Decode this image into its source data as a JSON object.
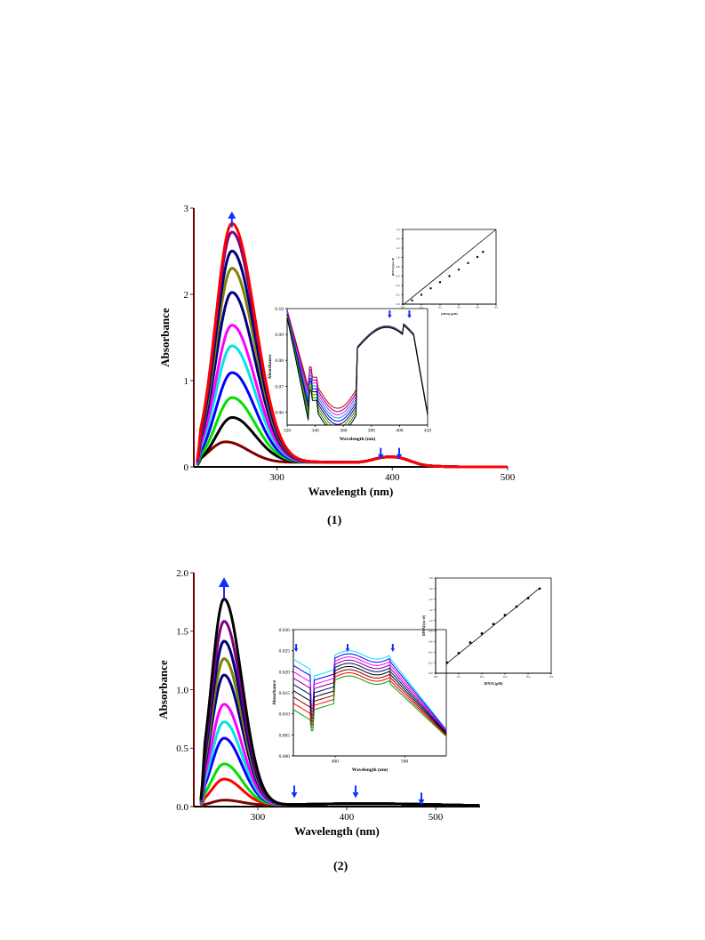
{
  "figures": [
    {
      "label": "(1)",
      "chart_data": {
        "type": "line",
        "xlabel": "Wavelength (nm)",
        "ylabel": "Absorbance",
        "xlim": [
          228,
          500
        ],
        "ylim": [
          0,
          3
        ],
        "xticks": [
          "300",
          "400",
          "500"
        ],
        "yticks": [
          "0",
          "1",
          "2",
          "3"
        ],
        "arrows": [
          {
            "x": 261,
            "y": 2.9,
            "direction": "up"
          },
          {
            "x": 390,
            "y": 0.22,
            "direction": "down"
          },
          {
            "x": 406,
            "y": 0.22,
            "direction": "down"
          }
        ],
        "series": [
          {
            "color": "#800000",
            "peak": 0.27,
            "peak_x": 255
          },
          {
            "color": "#000000",
            "peak": 0.55,
            "peak_x": 261
          },
          {
            "color": "#00e000",
            "peak": 0.78,
            "peak_x": 261
          },
          {
            "color": "#0000ff",
            "peak": 1.07,
            "peak_x": 261
          },
          {
            "color": "#00e5e5",
            "peak": 1.38,
            "peak_x": 261
          },
          {
            "color": "#ff00ff",
            "peak": 1.62,
            "peak_x": 261
          },
          {
            "color": "#000080",
            "peak": 2.0,
            "peak_x": 261
          },
          {
            "color": "#808000",
            "peak": 2.28,
            "peak_x": 261
          },
          {
            "color": "#000080",
            "peak": 2.48,
            "peak_x": 261
          },
          {
            "color": "#800080",
            "peak": 2.7,
            "peak_x": 261
          },
          {
            "color": "#ff0000",
            "peak": 2.8,
            "peak_x": 261
          }
        ],
        "tail_shoulders": [
          {
            "x": 391,
            "y": 0.09
          },
          {
            "x": 407,
            "y": 0.1
          }
        ]
      },
      "inset_spectra": {
        "type": "line",
        "xlabel": "Wavelength (nm)",
        "ylabel": "Absorbance",
        "xlim": [
          320,
          420
        ],
        "ylim": [
          0.055,
          0.1
        ],
        "xticks": [
          "320",
          "340",
          "360",
          "380",
          "400",
          "420"
        ],
        "yticks": [
          "0.06",
          "0.07",
          "0.08",
          "0.09",
          "0.10"
        ],
        "arrows": [
          {
            "x": 393,
            "direction": "down"
          },
          {
            "x": 407,
            "direction": "down"
          }
        ],
        "colors": [
          "#c00000",
          "#800080",
          "#ff00ff",
          "#00aaaa",
          "#0000ff",
          "#000080",
          "#808000",
          "#00a000",
          "#000000"
        ]
      },
      "inset_linear": {
        "type": "scatter",
        "xlabel": "[DNA] (μM)",
        "ylabel": "[DNA]/(εa-εf)",
        "xlim": [
          0,
          0.5
        ],
        "ylim": [
          0,
          1.6
        ],
        "xticks": [
          "0.0",
          "0.1",
          "0.2",
          "0.3",
          "0.4",
          "0.5"
        ],
        "yticks": [
          "0.0",
          "0.2",
          "0.4",
          "0.6",
          "0.8",
          "1.0",
          "1.2",
          "1.4",
          "1.6"
        ],
        "x": [
          0.05,
          0.1,
          0.15,
          0.2,
          0.25,
          0.3,
          0.35,
          0.4,
          0.43
        ],
        "y": [
          0.08,
          0.2,
          0.34,
          0.47,
          0.6,
          0.74,
          0.88,
          1.01,
          1.12
        ]
      }
    },
    {
      "label": "(2)",
      "chart_data": {
        "type": "line",
        "xlabel": "Wavelength (nm)",
        "ylabel": "Absorbance",
        "xlim": [
          228,
          550
        ],
        "ylim": [
          0,
          2.0
        ],
        "xticks": [
          "300",
          "400",
          "500"
        ],
        "yticks": [
          "0.0",
          "0.5",
          "1.0",
          "1.5",
          "2.0"
        ],
        "arrows": [
          {
            "x": 262,
            "y": 1.9,
            "direction": "up"
          },
          {
            "x": 341,
            "y": 0.18,
            "direction": "down"
          },
          {
            "x": 410,
            "y": 0.18,
            "direction": "down"
          },
          {
            "x": 484,
            "y": 0.12,
            "direction": "down"
          }
        ],
        "series": [
          {
            "color": "#800000",
            "peak": 0.05,
            "peak_x": 262
          },
          {
            "color": "#ff0000",
            "peak": 0.23,
            "peak_x": 262
          },
          {
            "color": "#00e000",
            "peak": 0.36,
            "peak_x": 262
          },
          {
            "color": "#0000ff",
            "peak": 0.58,
            "peak_x": 262
          },
          {
            "color": "#00e5e5",
            "peak": 0.72,
            "peak_x": 262
          },
          {
            "color": "#ff00ff",
            "peak": 0.87,
            "peak_x": 262
          },
          {
            "color": "#000080",
            "peak": 1.12,
            "peak_x": 262
          },
          {
            "color": "#808000",
            "peak": 1.26,
            "peak_x": 262
          },
          {
            "color": "#000080",
            "peak": 1.41,
            "peak_x": 262
          },
          {
            "color": "#800080",
            "peak": 1.58,
            "peak_x": 262
          },
          {
            "color": "#000000",
            "peak": 1.77,
            "peak_x": 262
          }
        ]
      },
      "inset_spectra": {
        "type": "line",
        "xlabel": "Wavelength (nm)",
        "ylabel": "Absorbance",
        "xlim": [
          340,
          560
        ],
        "ylim": [
          0.0,
          0.03
        ],
        "xticks": [
          "400",
          "500"
        ],
        "yticks": [
          "0.000",
          "0.005",
          "0.010",
          "0.015",
          "0.020",
          "0.025",
          "0.030"
        ],
        "arrows": [
          {
            "x": 344,
            "direction": "down"
          },
          {
            "x": 418,
            "direction": "down"
          },
          {
            "x": 483,
            "direction": "down"
          }
        ],
        "colors": [
          "#00e5e5",
          "#0000ff",
          "#ff00ff",
          "#800080",
          "#000080",
          "#000000",
          "#800000",
          "#ff0000",
          "#00a000"
        ]
      },
      "inset_linear": {
        "type": "scatter",
        "xlabel": "[DNA] (μM)",
        "ylabel": "[DNA]/(εa-εf)",
        "xlim": [
          0.0,
          0.5
        ],
        "ylim": [
          0.0,
          1.8
        ],
        "xticks": [
          "0.0",
          "0.1",
          "0.2",
          "0.3",
          "0.4",
          "0.5"
        ],
        "yticks": [
          "0.0",
          "0.2",
          "0.4",
          "0.6",
          "0.8",
          "1.0",
          "1.2",
          "1.4",
          "1.6",
          "1.8"
        ],
        "x": [
          0.05,
          0.1,
          0.15,
          0.2,
          0.25,
          0.3,
          0.35,
          0.4,
          0.45
        ],
        "y": [
          0.2,
          0.38,
          0.58,
          0.75,
          0.93,
          1.1,
          1.26,
          1.42,
          1.6
        ]
      }
    }
  ]
}
